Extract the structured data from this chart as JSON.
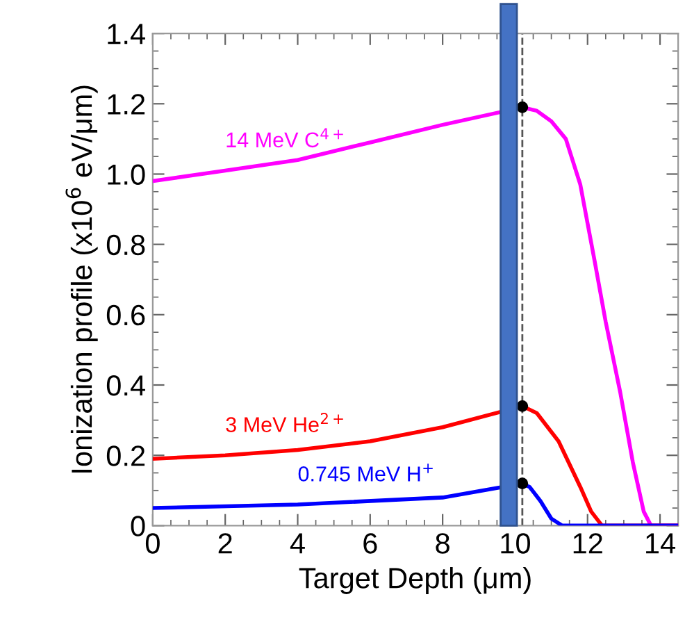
{
  "chart_data": {
    "type": "line",
    "xlabel": "Target Depth (μm)",
    "ylabel": "Ionization profile (x10$^{6}$ eV/μm)",
    "xlim": [
      0,
      14.5
    ],
    "xticks": [
      0,
      2,
      4,
      6,
      8,
      10,
      12,
      14
    ],
    "ylim": [
      0,
      1.4
    ],
    "yticks": [
      0,
      0.2,
      0.4,
      0.6,
      0.8,
      {
        "value": 1.0,
        "label": "1.0"
      },
      1.2,
      1.4
    ],
    "grid": false,
    "legend": false,
    "marker": "none",
    "line_style": "solid",
    "bands": [
      {
        "axis": "x",
        "from": 9.6,
        "to": 10.05,
        "color": "#4472c4"
      }
    ],
    "ref_lines": [
      {
        "axis": "x",
        "value": 10.2,
        "color": "#555555",
        "line_style": "dashed"
      }
    ],
    "series": [
      {
        "name": "14 MeV C$^{4+}$",
        "color": "#ff00ff",
        "x": [
          0,
          2,
          4,
          6,
          8,
          10.2,
          10.6,
          11.0,
          11.4,
          11.8,
          12.2,
          12.5,
          12.9,
          13.25,
          13.55,
          13.75,
          14.5
        ],
        "values": [
          0.98,
          1.01,
          1.04,
          1.09,
          1.14,
          1.19,
          1.18,
          1.15,
          1.1,
          0.97,
          0.75,
          0.58,
          0.38,
          0.18,
          0.04,
          0,
          0
        ]
      },
      {
        "name": "3 MeV He$^{2+}$",
        "color": "#ff0000",
        "x": [
          0,
          2,
          4,
          6,
          8,
          10.2,
          10.6,
          11.2,
          11.8,
          12.1,
          12.4,
          14.5
        ],
        "values": [
          0.19,
          0.2,
          0.215,
          0.24,
          0.28,
          0.34,
          0.32,
          0.24,
          0.11,
          0.04,
          0,
          0
        ]
      },
      {
        "name": "0.745 MeV H$^{+}$",
        "color": "#0000ff",
        "x": [
          0,
          4,
          8,
          10.2,
          10.4,
          10.7,
          11.0,
          11.3,
          14.5
        ],
        "values": [
          0.05,
          0.06,
          0.08,
          0.12,
          0.11,
          0.07,
          0.02,
          0,
          0
        ]
      },
      {
        "type": "scatter",
        "marker": "circle",
        "color": "#000000",
        "x": [
          10.2,
          10.2,
          10.2
        ],
        "values": [
          1.19,
          0.34,
          0.12
        ]
      }
    ]
  }
}
